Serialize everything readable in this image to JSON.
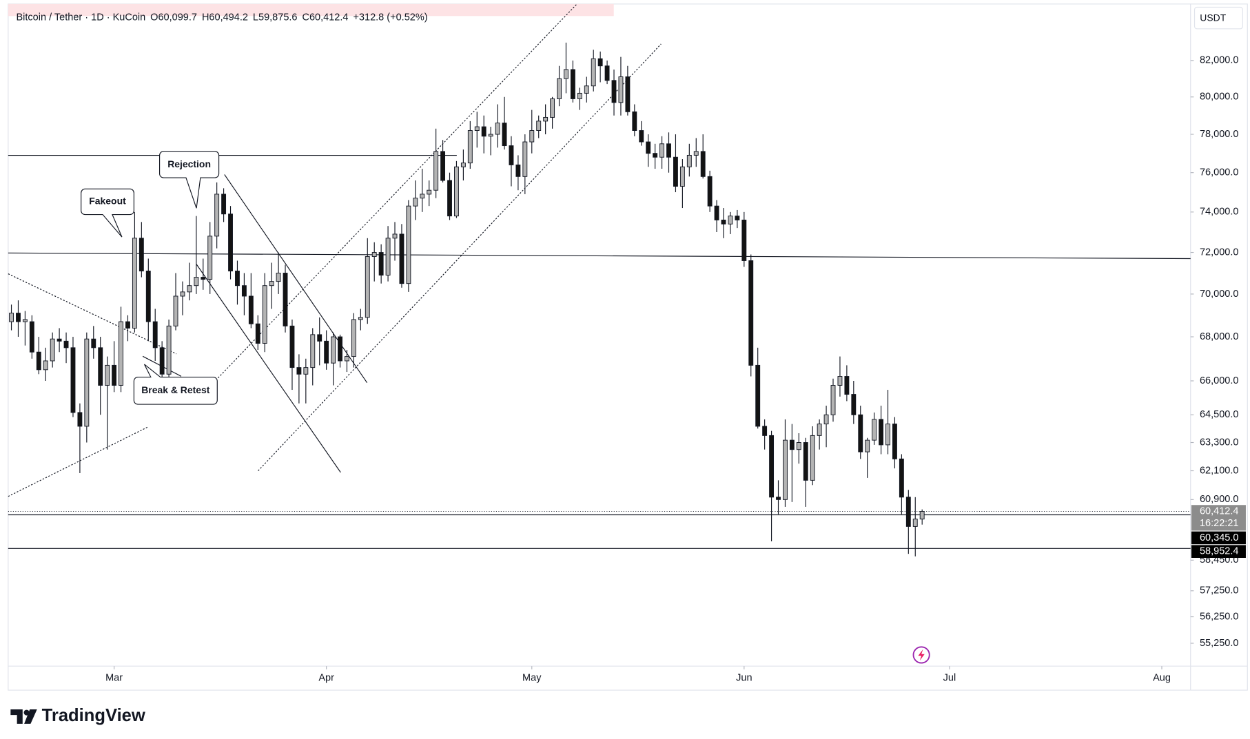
{
  "chart_data": {
    "type": "candlestick",
    "title": "Bitcoin / Tether · 1D · KuCoin",
    "header_values": [
      "O60,099.7",
      "H60,494.2",
      "L59,875.6",
      "C60,412.4",
      "+312.8 (+0.52%)"
    ],
    "currency": "USDT",
    "brand": "TradingView",
    "annotations": [
      "Fakeout",
      "Rejection",
      "Break & Retest"
    ],
    "log_scale": true,
    "grid": false,
    "up_color": "#b4b4b4",
    "down_color": "#131313",
    "open": [
      68700,
      69100,
      68700,
      68700,
      67300,
      66500,
      66900,
      67900,
      67800,
      67500,
      64600,
      64000,
      67900,
      67500,
      65800,
      66700,
      65800,
      68700,
      68400,
      72700,
      71100,
      68700,
      67500,
      66300,
      68500,
      69900,
      70100,
      70400,
      70800,
      70700,
      72800,
      74900,
      73900,
      71100,
      70400,
      69900,
      68600,
      67700,
      70400,
      70600,
      71000,
      68500,
      66600,
      66300,
      66600,
      68100,
      67800,
      66800,
      68000,
      66900,
      67100,
      68800,
      68900,
      71800,
      72000,
      70900,
      72700,
      72900,
      70500,
      74300,
      74700,
      74900,
      75100,
      77100,
      75600,
      73800,
      76300,
      76500,
      78200,
      78400,
      77900,
      78000,
      78600,
      77400,
      76400,
      75800,
      77600,
      78200,
      78700,
      78900,
      79900,
      81000,
      81500,
      79900,
      80200,
      80600,
      82100,
      81700,
      80900,
      79700,
      81100,
      79200,
      78200,
      77600,
      77000,
      76800,
      77500,
      76800,
      75300,
      76300,
      76900,
      77100,
      75800,
      74300,
      73600,
      73400,
      73800,
      73600,
      71600,
      66700,
      64000,
      63600,
      61000,
      60900,
      63400,
      63000,
      63300,
      61700,
      63600,
      64100,
      64500,
      65800,
      66200,
      65400,
      64500,
      62900,
      63400,
      64300,
      63200,
      64100,
      62600,
      61000,
      59800,
      60099.7
    ],
    "high": [
      69500,
      69700,
      69200,
      69000,
      68000,
      67500,
      68200,
      68400,
      68200,
      68000,
      65000,
      68200,
      68500,
      68000,
      67100,
      67800,
      69400,
      69000,
      74000,
      73500,
      71700,
      69300,
      67800,
      68800,
      71000,
      70600,
      71500,
      73800,
      71700,
      73500,
      75500,
      75200,
      74300,
      71600,
      71000,
      71000,
      69000,
      71000,
      71500,
      72000,
      71400,
      68800,
      67200,
      67000,
      68400,
      68900,
      68300,
      68200,
      68100,
      67400,
      69100,
      69300,
      72700,
      72500,
      72400,
      73300,
      73500,
      73400,
      74600,
      75600,
      76200,
      75600,
      78300,
      77700,
      76000,
      76600,
      77200,
      78700,
      79200,
      79000,
      78400,
      79600,
      80000,
      77900,
      76900,
      78000,
      79300,
      79000,
      79600,
      80000,
      81700,
      83000,
      82000,
      80500,
      81100,
      82600,
      82500,
      82000,
      81500,
      82200,
      81700,
      79600,
      78700,
      78000,
      77500,
      77900,
      78100,
      78000,
      76700,
      77500,
      77800,
      78000,
      76100,
      74600,
      74200,
      74000,
      74100,
      74000,
      71900,
      67500,
      64300,
      63800,
      61700,
      64300,
      64100,
      63700,
      63500,
      64000,
      64300,
      64900,
      66100,
      67100,
      66700,
      66000,
      64900,
      63500,
      64600,
      64900,
      65600,
      64400,
      62800,
      61300,
      61000,
      60494.2
    ],
    "low": [
      68300,
      68000,
      67600,
      67000,
      66300,
      66000,
      66600,
      67300,
      66800,
      64400,
      62000,
      63300,
      67000,
      64500,
      63000,
      65500,
      65500,
      67800,
      68200,
      70800,
      67800,
      66900,
      65800,
      65800,
      68300,
      69000,
      69700,
      70000,
      70200,
      70000,
      72200,
      73500,
      70700,
      69500,
      69000,
      68400,
      67400,
      67300,
      69300,
      70000,
      68200,
      65600,
      65000,
      65000,
      65800,
      66700,
      66500,
      65800,
      66600,
      66400,
      66600,
      68300,
      68600,
      70600,
      70500,
      70600,
      71600,
      70300,
      70100,
      73600,
      74000,
      74300,
      74700,
      75500,
      73600,
      73700,
      75600,
      76200,
      77300,
      77000,
      76900,
      77300,
      77200,
      75300,
      75100,
      74900,
      77000,
      77800,
      78000,
      78300,
      79500,
      80200,
      79700,
      79300,
      79700,
      80300,
      80800,
      80700,
      79000,
      79000,
      79000,
      77900,
      77400,
      76300,
      76200,
      76200,
      76000,
      75000,
      74200,
      75800,
      76300,
      75700,
      74000,
      73000,
      72700,
      72900,
      73200,
      71300,
      66200,
      63900,
      63000,
      59200,
      60300,
      60600,
      60800,
      62400,
      60600,
      61500,
      63000,
      63100,
      64200,
      65300,
      65100,
      64100,
      62600,
      61800,
      63200,
      62800,
      62800,
      62200,
      60300,
      58700,
      58600,
      59875.6
    ],
    "close": [
      69100,
      68700,
      68800,
      67300,
      66500,
      66900,
      67900,
      67800,
      67500,
      64600,
      64000,
      67900,
      67500,
      65800,
      66700,
      65800,
      68700,
      68400,
      72700,
      71100,
      68700,
      67500,
      66300,
      68500,
      69900,
      70100,
      70400,
      70800,
      70700,
      72800,
      74900,
      73900,
      71100,
      70400,
      69900,
      68600,
      67700,
      70400,
      70600,
      71000,
      68500,
      66600,
      66300,
      66600,
      68100,
      67800,
      66800,
      68000,
      66900,
      67100,
      68800,
      68900,
      71800,
      72000,
      70900,
      72700,
      72900,
      70500,
      74300,
      74700,
      74900,
      75100,
      77100,
      75600,
      73800,
      76300,
      76500,
      78200,
      78400,
      77900,
      78000,
      78600,
      77400,
      76400,
      75800,
      77600,
      78200,
      78700,
      78900,
      79900,
      81000,
      81500,
      79900,
      80200,
      80600,
      82100,
      81700,
      80900,
      79700,
      81100,
      79200,
      78200,
      77600,
      77000,
      76800,
      77500,
      76800,
      75300,
      76300,
      76900,
      77100,
      75800,
      74300,
      73600,
      73400,
      73800,
      73600,
      71600,
      66700,
      64000,
      63600,
      61000,
      60900,
      63400,
      63000,
      63300,
      61700,
      63600,
      64100,
      64500,
      65800,
      66200,
      65400,
      64500,
      62900,
      63400,
      64300,
      63200,
      64100,
      62600,
      61000,
      59800,
      60100,
      60412.4
    ],
    "xlim": [
      -0.47,
      172.2
    ],
    "xticks": [
      {
        "value": 15,
        "label": "Mar"
      },
      {
        "value": 46,
        "label": "Apr"
      },
      {
        "value": 76,
        "label": "May"
      },
      {
        "value": 107,
        "label": "Jun"
      },
      {
        "value": 137,
        "label": "Jul"
      },
      {
        "value": 168,
        "label": "Aug"
      }
    ],
    "ylim": [
      54400,
      85200
    ],
    "yticks": [
      {
        "value": 82000,
        "label": "82,000.0"
      },
      {
        "value": 80000,
        "label": "80,000.0"
      },
      {
        "value": 78000,
        "label": "78,000.0"
      },
      {
        "value": 76000,
        "label": "76,000.0"
      },
      {
        "value": 74000,
        "label": "74,000.0"
      },
      {
        "value": 72000,
        "label": "72,000.0"
      },
      {
        "value": 70000,
        "label": "70,000.0"
      },
      {
        "value": 68000,
        "label": "68,000.0"
      },
      {
        "value": 66000,
        "label": "66,000.0"
      },
      {
        "value": 64500,
        "label": "64,500.0"
      },
      {
        "value": 63300,
        "label": "63,300.0"
      },
      {
        "value": 62100,
        "label": "62,100.0"
      },
      {
        "value": 60900,
        "label": "60,900.0"
      },
      {
        "value": 58450,
        "label": "58,450.0"
      },
      {
        "value": 57250,
        "label": "57,250.0"
      },
      {
        "value": 56250,
        "label": "56,250.0"
      },
      {
        "value": 55250,
        "label": "55,250.0"
      }
    ],
    "price_labels": [
      {
        "value": 60412.4,
        "label": "60,412.4",
        "color": "#8c8c8c"
      },
      {
        "value": 60345.0,
        "label": "60,345.0",
        "color": "#000000"
      },
      {
        "value": 58952.4,
        "label": "58,952.4",
        "color": "#000000"
      }
    ],
    "countdown": "16:22:21"
  }
}
